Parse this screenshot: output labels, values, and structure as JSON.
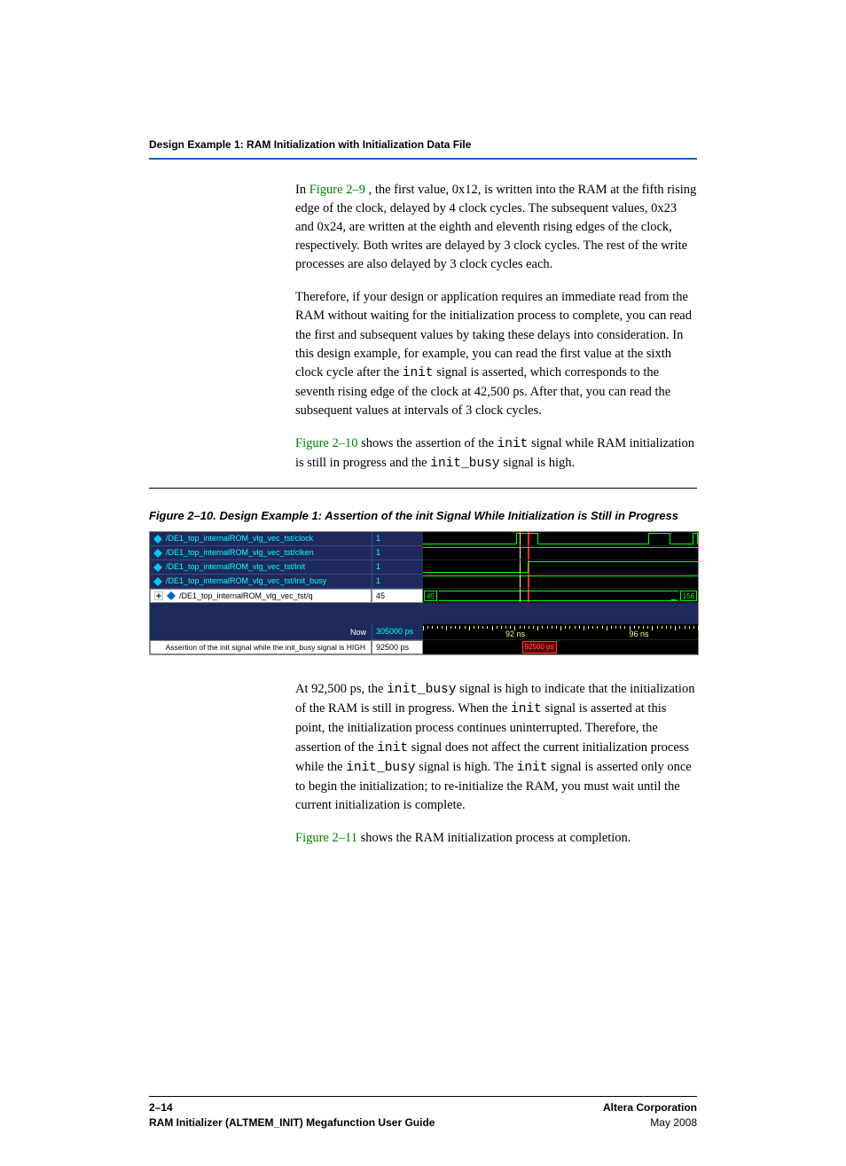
{
  "header": {
    "section_title": "Design Example 1: RAM Initialization with Initialization Data File"
  },
  "paragraphs": {
    "p1_link": "Figure 2–9",
    "p1_rest": " , the first value, 0x12,  is written into the RAM at the fifth rising edge of the clock, delayed by 4 clock cycles. The subsequent values, 0x23 and 0x24, are written at the eighth and eleventh rising edges of the clock, respectively. Both writes are delayed by 3 clock cycles. The rest of the write processes are also delayed by 3 clock cycles each.",
    "p2_a": "Therefore, if your design or application requires an immediate read from the RAM without waiting for the initialization process to complete, you can read the first and subsequent values by taking these delays into consideration. In this design example, for example, you can read the first value at the sixth clock cycle after the ",
    "p2_mono1": "init",
    "p2_b": " signal is asserted, which corresponds to the seventh rising edge of the clock at 42,500 ps. After that, you can read the subsequent values at intervals of 3 clock cycles.",
    "p3_link": "Figure 2–10",
    "p3_a": " shows the assertion of the ",
    "p3_mono1": "init",
    "p3_b": " signal while RAM initialization is still in progress and the ",
    "p3_mono2": "init_busy",
    "p3_c": " signal is high.",
    "p4_a": "At 92,500 ps, the ",
    "p4_mono1": "init_busy",
    "p4_b": " signal is high to indicate that the initialization of the RAM is still in progress. When the ",
    "p4_mono2": "init",
    "p4_c": " signal is asserted at this point, the initialization process continues uninterrupted. Therefore, the assertion of the ",
    "p4_mono3": "init",
    "p4_d": " signal does not affect the current initialization process while the ",
    "p4_mono4": "init_busy",
    "p4_e": " signal is high. The ",
    "p4_mono5": "init",
    "p4_f": " signal is asserted only once to begin the initialization; to re-initialize the RAM, you must wait until the current initialization is complete.",
    "p5_link": "Figure 2–11",
    "p5_rest": " shows the RAM initialization process at completion."
  },
  "figure": {
    "caption": "Figure 2–10. Design Example 1: Assertion of the init Signal While Initialization is Still in Progress",
    "signals": [
      {
        "name": "/DE1_top_internalROM_vlg_vec_tst/clock",
        "val": "1"
      },
      {
        "name": "/DE1_top_internalROM_vlg_vec_tst/clken",
        "val": "1"
      },
      {
        "name": "/DE1_top_internalROM_vlg_vec_tst/init",
        "val": "1"
      },
      {
        "name": "/DE1_top_internalROM_vlg_vec_tst/init_busy",
        "val": "1"
      },
      {
        "name": "/DE1_top_internalROM_vlg_vec_tst/q",
        "val": "45"
      }
    ],
    "bus_left": "45",
    "bus_right": "156",
    "now_label": "Now",
    "now_val": "305000 ps",
    "cursor_label": "Assertion of the init signal while the init_busy signal is HIGH",
    "cursor_val": "92500 ps",
    "cursor_marker": "92500 ps",
    "timeline_labels": [
      {
        "text": "92 ns",
        "left_pct": 30
      },
      {
        "text": "96 ns",
        "left_pct": 75
      }
    ],
    "colors": {
      "panel_bg": "#1e2a5c",
      "signal_text": "#00ffff",
      "wave_bg": "#000000",
      "trace": "#00ff00",
      "tick": "#ffff80",
      "cursor": "#ff3030"
    }
  },
  "footer": {
    "page_num": "2–14",
    "doc_title": "RAM Initializer (ALTMEM_INIT) Megafunction User Guide",
    "company": "Altera Corporation",
    "date": "May 2008"
  }
}
